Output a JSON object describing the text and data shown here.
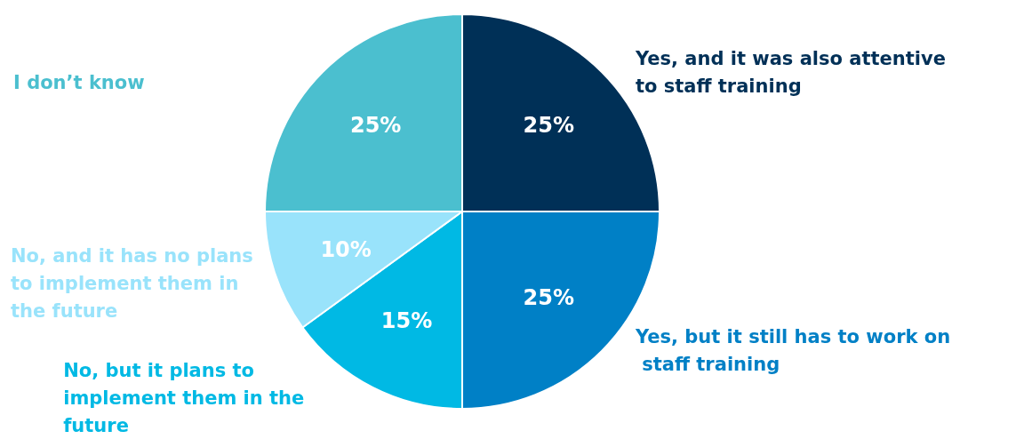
{
  "chart_data": {
    "type": "pie",
    "categories": [
      "Yes, and it was also attentive to staff training",
      "Yes, but it still has to work on staff training",
      "No, but it plans to implement them in the future",
      "No, and it has no plans to implement them in the future",
      "I don’t know"
    ],
    "values": [
      25,
      25,
      15,
      10,
      25
    ],
    "value_labels": [
      "25%",
      "25%",
      "15%",
      "10%",
      "25%"
    ],
    "colors": [
      "#003057",
      "#0080c6",
      "#00b9e4",
      "#99e3fb",
      "#4bbfcf"
    ],
    "legend": false
  }
}
